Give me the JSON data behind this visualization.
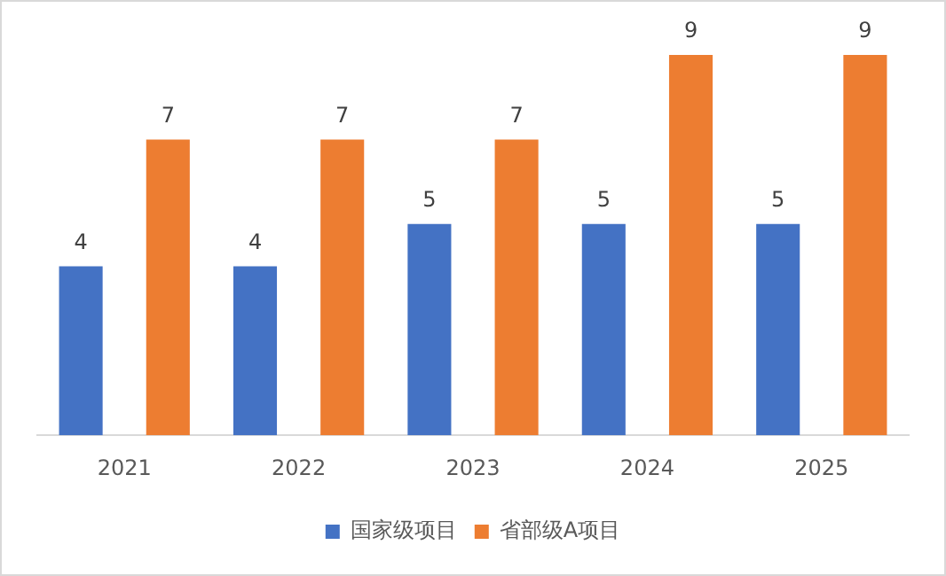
{
  "chart_data": {
    "type": "bar",
    "categories": [
      "2021",
      "2022",
      "2023",
      "2024",
      "2025"
    ],
    "series": [
      {
        "name": "国家级项目",
        "color": "#4472c4",
        "values": [
          4,
          4,
          5,
          5,
          5
        ]
      },
      {
        "name": "省部级A项目",
        "color": "#ed7d31",
        "values": [
          7,
          7,
          7,
          9,
          9
        ]
      }
    ],
    "data_labels": true,
    "grid": false,
    "legend": "bottom"
  }
}
